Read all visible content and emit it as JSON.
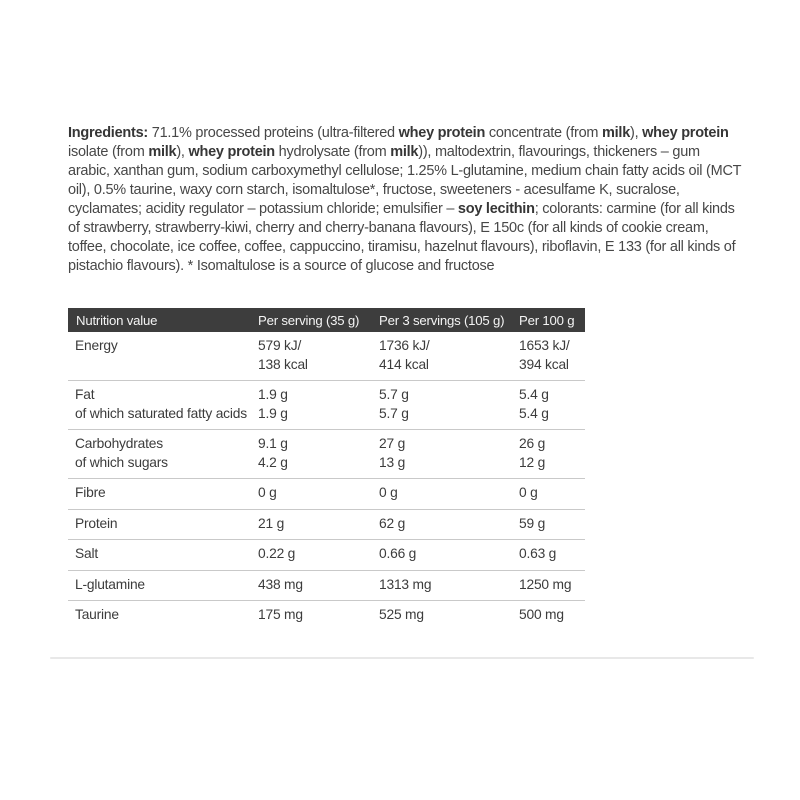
{
  "page": {
    "background": "#ffffff"
  },
  "ingredients": {
    "segments": [
      {
        "t": "Ingredients: ",
        "b": true
      },
      {
        "t": "71.1% processed proteins (ultra-filtered ",
        "b": false
      },
      {
        "t": "whey protein",
        "b": true
      },
      {
        "t": " concentrate (from ",
        "b": false
      },
      {
        "t": "milk",
        "b": true
      },
      {
        "t": "), ",
        "b": false
      },
      {
        "t": "whey protein",
        "b": true
      },
      {
        "t": " isolate (from ",
        "b": false
      },
      {
        "t": "milk",
        "b": true
      },
      {
        "t": "), ",
        "b": false
      },
      {
        "t": "whey protein",
        "b": true
      },
      {
        "t": " hydrolysate (from ",
        "b": false
      },
      {
        "t": "milk",
        "b": true
      },
      {
        "t": ")), maltodextrin, flavourings, thickeners – gum arabic, xanthan gum, sodium carboxymethyl cellulose; 1.25% L-glutamine, medium chain fatty acids oil (MCT oil), 0.5% taurine, waxy corn starch, isomaltulose*, fructose, sweeteners - acesulfame K, sucralose, cyclamates; acidity regulator – potassium chloride; emulsifier – ",
        "b": false
      },
      {
        "t": "soy lecithin",
        "b": true
      },
      {
        "t": "; colorants: carmine (for all kinds of strawberry, strawberry-kiwi, cherry and cherry-banana flavours), E 150c (for all kinds of cookie cream, toffee, chocolate, ice coffee, coffee, cappuccino, tiramisu, hazelnut flavours), riboflavin, E 133 (for all kinds of pistachio flavours). * Isomaltulose is a source of glucose and fructose",
        "b": false
      }
    ]
  },
  "table": {
    "header_bg": "#3d3d3d",
    "header_text_color": "#f4f4f4",
    "divider_color": "#c9c9c9",
    "columns": [
      "Nutrition value",
      "Per serving (35 g)",
      "Per 3 servings (105 g)",
      "Per 100 g"
    ],
    "rows": [
      {
        "label": [
          "Energy"
        ],
        "values": [
          [
            "579 kJ/",
            "138 kcal"
          ],
          [
            "1736 kJ/",
            "414 kcal"
          ],
          [
            "1653 kJ/",
            "394 kcal"
          ]
        ]
      },
      {
        "label": [
          "Fat",
          "of which saturated fatty acids"
        ],
        "values": [
          [
            "1.9 g",
            "1.9 g"
          ],
          [
            "5.7 g",
            "5.7 g"
          ],
          [
            "5.4 g",
            "5.4 g"
          ]
        ]
      },
      {
        "label": [
          "Carbohydrates",
          "of which sugars"
        ],
        "values": [
          [
            "9.1 g",
            "4.2 g"
          ],
          [
            "27 g",
            "13 g"
          ],
          [
            "26 g",
            "12 g"
          ]
        ]
      },
      {
        "label": [
          "Fibre"
        ],
        "values": [
          [
            "0 g"
          ],
          [
            "0 g"
          ],
          [
            "0 g"
          ]
        ]
      },
      {
        "label": [
          "Protein"
        ],
        "values": [
          [
            "21 g"
          ],
          [
            "62 g"
          ],
          [
            "59 g"
          ]
        ]
      },
      {
        "label": [
          "Salt"
        ],
        "values": [
          [
            "0.22 g"
          ],
          [
            "0.66 g"
          ],
          [
            "0.63 g"
          ]
        ]
      },
      {
        "label": [
          "L-glutamine"
        ],
        "values": [
          [
            "438 mg"
          ],
          [
            "1313 mg"
          ],
          [
            "1250 mg"
          ]
        ]
      },
      {
        "label": [
          "Taurine"
        ],
        "values": [
          [
            "175 mg"
          ],
          [
            "525 mg"
          ],
          [
            "500 mg"
          ]
        ]
      }
    ]
  },
  "footer": {
    "divider_color": "#e8e8e8"
  }
}
